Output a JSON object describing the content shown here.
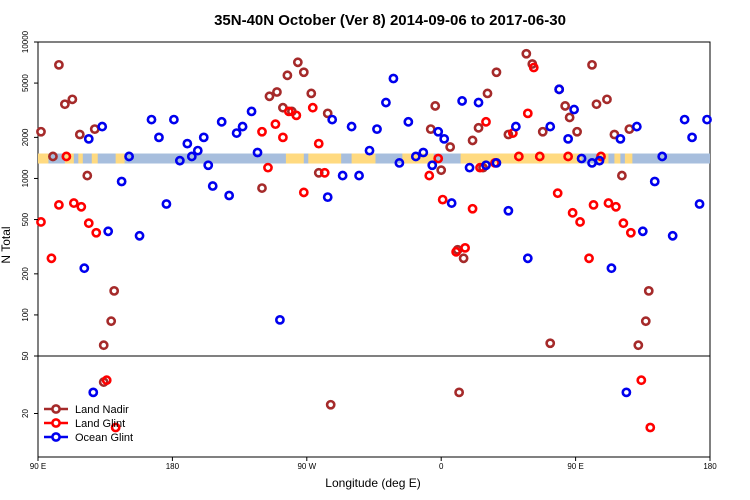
{
  "chart_data": {
    "type": "scatter",
    "title": "35N-40N October (Ver 8)   2014-09-06 to 2017-06-30",
    "xlabel": "Longitude (deg E)",
    "ylabel": "N Total",
    "x_unit": "longitude shifted (0 = 90 E, 360 = 90 E again)",
    "x_ticks": [
      {
        "pos": 0,
        "label": "90 E"
      },
      {
        "pos": 90,
        "label": "180"
      },
      {
        "pos": 180,
        "label": "90 W"
      },
      {
        "pos": 270,
        "label": "0"
      },
      {
        "pos": 360,
        "label": "90 E"
      },
      {
        "pos": 450,
        "label": "180"
      }
    ],
    "xlim": [
      0,
      450
    ],
    "y_scale": "log",
    "upper_panel": {
      "ylim": [
        50,
        10000
      ],
      "y_ticks": [
        {
          "value": 50,
          "label": "50"
        },
        {
          "value": 100,
          "label": "100"
        },
        {
          "value": 200,
          "label": "200"
        },
        {
          "value": 500,
          "label": "500"
        },
        {
          "value": 1000,
          "label": "1000"
        },
        {
          "value": 2000,
          "label": "2000"
        },
        {
          "value": 5000,
          "label": "5000"
        },
        {
          "value": 10000,
          "label": "10000"
        }
      ]
    },
    "lower_panel": {
      "ylim": [
        10,
        50
      ],
      "y_ticks": [
        {
          "value": 20,
          "label": "20"
        }
      ]
    },
    "land_mask_band": {
      "y": 1400,
      "land_color": "#FFDA80",
      "ocean_color": "#A7BEDD"
    },
    "legend": {
      "placement": "bottom-left"
    },
    "series": [
      {
        "name": "Land Nadir",
        "color": "#A52A2A",
        "points": [
          [
            2,
            2200
          ],
          [
            10,
            1450
          ],
          [
            14,
            6800
          ],
          [
            18,
            3500
          ],
          [
            23,
            3800
          ],
          [
            28,
            2100
          ],
          [
            33,
            1050
          ],
          [
            38,
            2300
          ],
          [
            44,
            60
          ],
          [
            49,
            90
          ],
          [
            51,
            150
          ],
          [
            44,
            33
          ],
          [
            150,
            850
          ],
          [
            155,
            4000
          ],
          [
            160,
            4300
          ],
          [
            164,
            3300
          ],
          [
            167,
            5700
          ],
          [
            170,
            3100
          ],
          [
            174,
            7100
          ],
          [
            178,
            6000
          ],
          [
            183,
            4200
          ],
          [
            188,
            1100
          ],
          [
            194,
            3000
          ],
          [
            196,
            23
          ],
          [
            263,
            2300
          ],
          [
            266,
            3400
          ],
          [
            270,
            1150
          ],
          [
            276,
            1700
          ],
          [
            281,
            300
          ],
          [
            282,
            28
          ],
          [
            285,
            260
          ],
          [
            291,
            1900
          ],
          [
            295,
            2350
          ],
          [
            298,
            1200
          ],
          [
            301,
            4200
          ],
          [
            307,
            6000
          ],
          [
            315,
            2100
          ],
          [
            327,
            8200
          ],
          [
            331,
            6900
          ],
          [
            338,
            2200
          ],
          [
            343,
            62
          ],
          [
            349,
            4500
          ],
          [
            353,
            3400
          ],
          [
            356,
            2800
          ],
          [
            361,
            2200
          ],
          [
            371,
            6800
          ],
          [
            374,
            3500
          ],
          [
            381,
            3800
          ],
          [
            386,
            2100
          ],
          [
            391,
            1050
          ],
          [
            396,
            2300
          ],
          [
            402,
            60
          ],
          [
            407,
            90
          ],
          [
            409,
            150
          ]
        ]
      },
      {
        "name": "Land Glint",
        "color": "#FF0000",
        "points": [
          [
            2,
            480
          ],
          [
            9,
            260
          ],
          [
            14,
            640
          ],
          [
            19,
            1450
          ],
          [
            24,
            660
          ],
          [
            29,
            620
          ],
          [
            34,
            470
          ],
          [
            39,
            400
          ],
          [
            46,
            34
          ],
          [
            52,
            16
          ],
          [
            150,
            2200
          ],
          [
            154,
            1200
          ],
          [
            159,
            2500
          ],
          [
            164,
            2000
          ],
          [
            168,
            3100
          ],
          [
            173,
            2900
          ],
          [
            178,
            790
          ],
          [
            184,
            3300
          ],
          [
            188,
            1800
          ],
          [
            192,
            1100
          ],
          [
            262,
            1050
          ],
          [
            268,
            1400
          ],
          [
            271,
            700
          ],
          [
            280,
            290
          ],
          [
            286,
            310
          ],
          [
            291,
            600
          ],
          [
            296,
            1200
          ],
          [
            300,
            2600
          ],
          [
            306,
            1300
          ],
          [
            318,
            2150
          ],
          [
            322,
            1450
          ],
          [
            328,
            3000
          ],
          [
            332,
            6500
          ],
          [
            336,
            1450
          ],
          [
            348,
            780
          ],
          [
            355,
            1450
          ],
          [
            358,
            560
          ],
          [
            363,
            480
          ],
          [
            369,
            260
          ],
          [
            372,
            640
          ],
          [
            377,
            1450
          ],
          [
            382,
            660
          ],
          [
            387,
            620
          ],
          [
            392,
            470
          ],
          [
            397,
            400
          ],
          [
            404,
            34
          ],
          [
            410,
            16
          ]
        ]
      },
      {
        "name": "Ocean Glint",
        "color": "#0000EE",
        "points": [
          [
            31,
            220
          ],
          [
            34,
            1950
          ],
          [
            37,
            28
          ],
          [
            43,
            2400
          ],
          [
            47,
            410
          ],
          [
            56,
            950
          ],
          [
            61,
            1450
          ],
          [
            68,
            380
          ],
          [
            76,
            2700
          ],
          [
            81,
            2000
          ],
          [
            86,
            650
          ],
          [
            91,
            2700
          ],
          [
            95,
            1350
          ],
          [
            100,
            1800
          ],
          [
            103,
            1450
          ],
          [
            107,
            1600
          ],
          [
            111,
            2000
          ],
          [
            114,
            1250
          ],
          [
            117,
            880
          ],
          [
            123,
            2600
          ],
          [
            128,
            750
          ],
          [
            133,
            2150
          ],
          [
            137,
            2400
          ],
          [
            143,
            3100
          ],
          [
            147,
            1550
          ],
          [
            162,
            92
          ],
          [
            194,
            730
          ],
          [
            197,
            2700
          ],
          [
            204,
            1050
          ],
          [
            210,
            2400
          ],
          [
            215,
            1050
          ],
          [
            222,
            1600
          ],
          [
            227,
            2300
          ],
          [
            233,
            3600
          ],
          [
            238,
            5400
          ],
          [
            242,
            1300
          ],
          [
            248,
            2600
          ],
          [
            253,
            1450
          ],
          [
            258,
            1550
          ],
          [
            264,
            1250
          ],
          [
            268,
            2200
          ],
          [
            272,
            1950
          ],
          [
            277,
            660
          ],
          [
            284,
            3700
          ],
          [
            289,
            1200
          ],
          [
            295,
            3600
          ],
          [
            300,
            1250
          ],
          [
            307,
            1300
          ],
          [
            315,
            580
          ],
          [
            320,
            2400
          ],
          [
            328,
            260
          ],
          [
            343,
            2400
          ],
          [
            349,
            4500
          ],
          [
            355,
            1950
          ],
          [
            359,
            3200
          ],
          [
            364,
            1400
          ],
          [
            371,
            1300
          ],
          [
            376,
            1350
          ],
          [
            384,
            220
          ],
          [
            390,
            1950
          ],
          [
            394,
            28
          ],
          [
            401,
            2400
          ],
          [
            405,
            410
          ],
          [
            413,
            950
          ],
          [
            418,
            1450
          ],
          [
            425,
            380
          ],
          [
            433,
            2700
          ],
          [
            438,
            2000
          ],
          [
            443,
            650
          ],
          [
            448,
            2700
          ],
          [
            451,
            1350
          ]
        ]
      }
    ]
  }
}
